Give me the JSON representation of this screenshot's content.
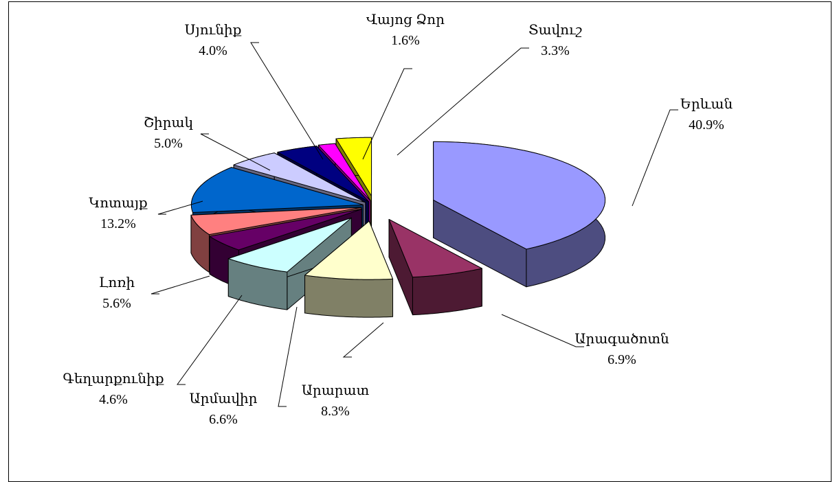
{
  "chart_data": {
    "type": "pie",
    "style": "3d-exploded",
    "legend": "none",
    "slices": [
      {
        "name": "Երևան",
        "value": 40.9,
        "label": "40.9%",
        "color": "#9999ff"
      },
      {
        "name": "Արագածոտն",
        "value": 6.9,
        "label": "6.9%",
        "color": "#993366"
      },
      {
        "name": "Արարատ",
        "value": 8.3,
        "label": "8.3%",
        "color": "#ffffcc"
      },
      {
        "name": "Արմավիր",
        "value": 6.6,
        "label": "6.6%",
        "color": "#ccffff"
      },
      {
        "name": "Գեղարքունիք",
        "value": 4.6,
        "label": "4.6%",
        "color": "#660066"
      },
      {
        "name": "Լոռի",
        "value": 5.6,
        "label": "5.6%",
        "color": "#ff8080"
      },
      {
        "name": "Կոտայք",
        "value": 13.2,
        "label": "13.2%",
        "color": "#0066cc"
      },
      {
        "name": "Շիրակ",
        "value": 5.0,
        "label": "5.0%",
        "color": "#ccccff"
      },
      {
        "name": "Սյունիք",
        "value": 4.0,
        "label": "4.0%",
        "color": "#000080"
      },
      {
        "name": "Վայոց Ձոր",
        "value": 1.6,
        "label": "1.6%",
        "color": "#ff00ff"
      },
      {
        "name": "Տավուշ",
        "value": 3.3,
        "label": "3.3%",
        "color": "#ffff00"
      }
    ]
  }
}
